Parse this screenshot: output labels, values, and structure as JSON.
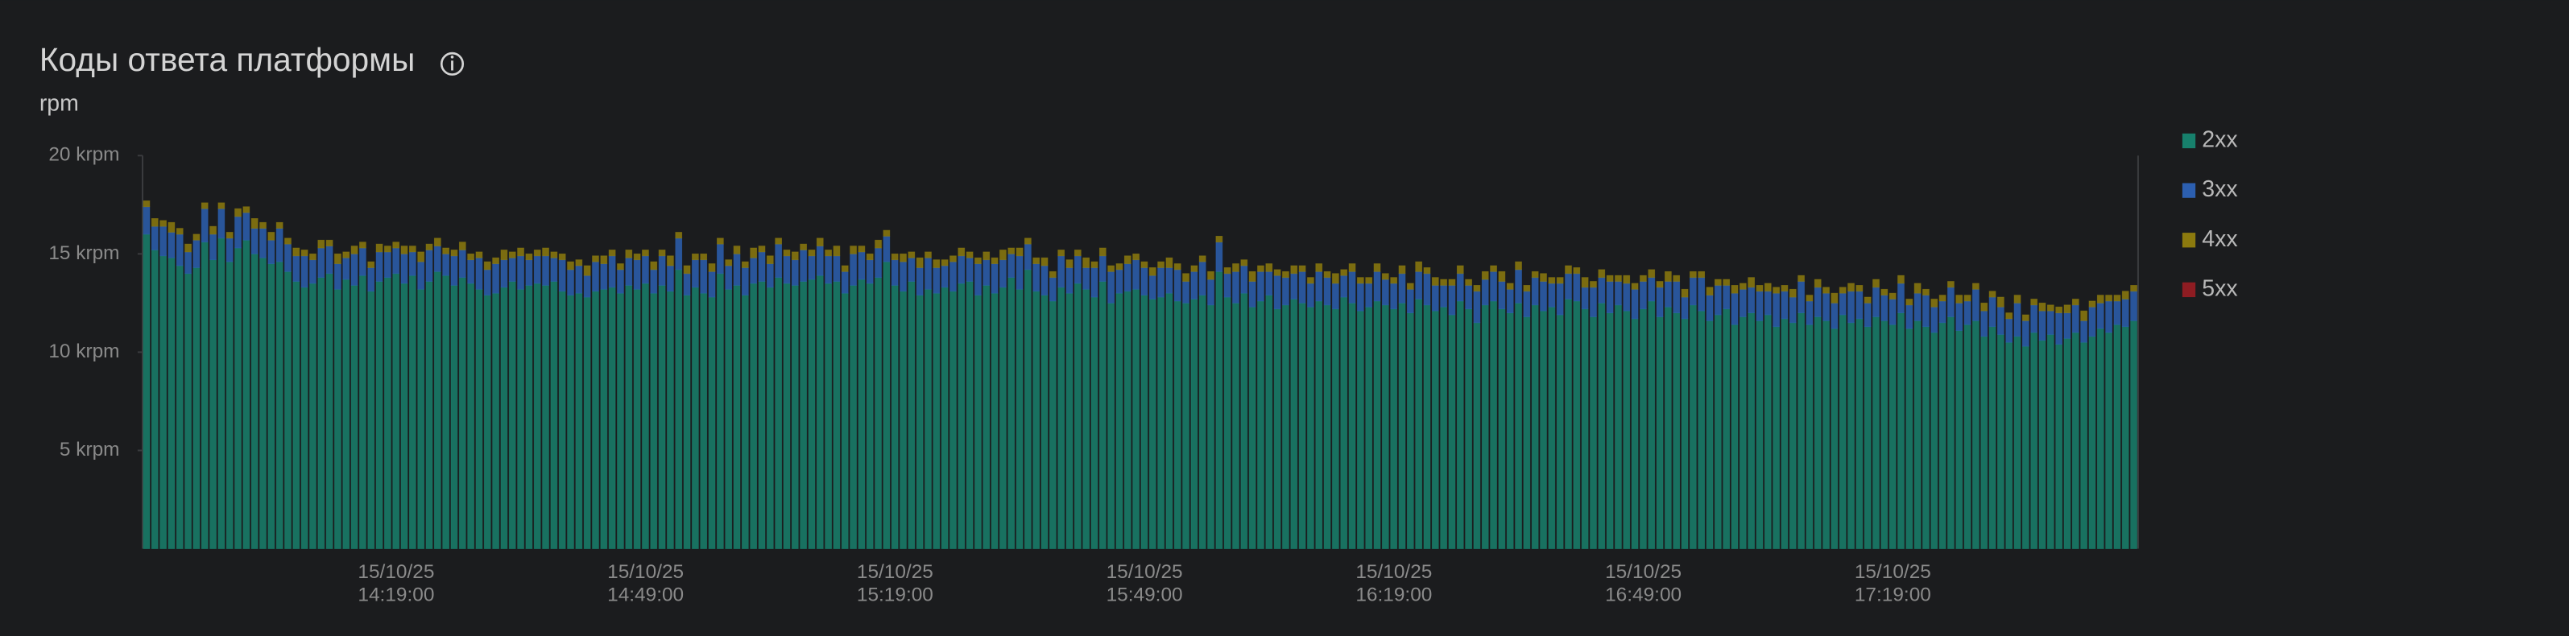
{
  "chart_data": {
    "type": "stacked-bar",
    "title": "Коды ответа платформы",
    "subtitle": "rpm",
    "categories": [
      null,
      null,
      null,
      null,
      null,
      null,
      null,
      null,
      null,
      null,
      null,
      null,
      null,
      null,
      null,
      null,
      null,
      null,
      null,
      null,
      null,
      null,
      null,
      null,
      null,
      null,
      null,
      null,
      null,
      null,
      "15/10/25\n14:19:00",
      null,
      null,
      null,
      null,
      null,
      null,
      null,
      null,
      null,
      null,
      null,
      null,
      null,
      null,
      null,
      null,
      null,
      null,
      null,
      null,
      null,
      null,
      null,
      null,
      null,
      null,
      null,
      null,
      null,
      "15/10/25\n14:49:00",
      null,
      null,
      null,
      null,
      null,
      null,
      null,
      null,
      null,
      null,
      null,
      null,
      null,
      null,
      null,
      null,
      null,
      null,
      null,
      null,
      null,
      null,
      null,
      null,
      null,
      null,
      null,
      null,
      null,
      "15/10/25\n15:19:00",
      null,
      null,
      null,
      null,
      null,
      null,
      null,
      null,
      null,
      null,
      null,
      null,
      null,
      null,
      null,
      null,
      null,
      null,
      null,
      null,
      null,
      null,
      null,
      null,
      null,
      null,
      null,
      null,
      null,
      "15/10/25\n15:49:00",
      null,
      null,
      null,
      null,
      null,
      null,
      null,
      null,
      null,
      null,
      null,
      null,
      null,
      null,
      null,
      null,
      null,
      null,
      null,
      null,
      null,
      null,
      null,
      null,
      null,
      null,
      null,
      null,
      null,
      "15/10/25\n16:19:00",
      null,
      null,
      null,
      null,
      null,
      null,
      null,
      null,
      null,
      null,
      null,
      null,
      null,
      null,
      null,
      null,
      null,
      null,
      null,
      null,
      null,
      null,
      null,
      null,
      null,
      null,
      null,
      null,
      null,
      "15/10/25\n16:49:00",
      null,
      null,
      null,
      null,
      null,
      null,
      null,
      null,
      null,
      null,
      null,
      null,
      null,
      null,
      null,
      null,
      null,
      null,
      null,
      null,
      null,
      null,
      null,
      null,
      null,
      null,
      null,
      null,
      null,
      "15/10/25\n17:19:00",
      null,
      null,
      null,
      null,
      null,
      null,
      null,
      null,
      null,
      null,
      null,
      null,
      null,
      null,
      null,
      null,
      null,
      null,
      null,
      null,
      null,
      null,
      null,
      null,
      null,
      null,
      null,
      null,
      null
    ],
    "series": [
      {
        "name": "2xx",
        "color": "#17806c",
        "values": [
          16.0,
          15.2,
          14.9,
          14.8,
          14.4,
          14.0,
          14.3,
          15.6,
          14.7,
          15.8,
          14.6,
          15.3,
          15.7,
          15.0,
          14.8,
          14.5,
          14.6,
          14.1,
          13.6,
          13.3,
          13.5,
          13.8,
          14.0,
          13.2,
          13.7,
          13.4,
          13.9,
          13.1,
          13.6,
          13.8,
          14.0,
          13.5,
          13.9,
          13.2,
          13.6,
          14.1,
          13.9,
          13.4,
          13.8,
          13.5,
          13.2,
          12.9,
          13.0,
          13.3,
          13.6,
          13.2,
          13.4,
          13.5,
          13.4,
          13.6,
          13.1,
          12.9,
          13.0,
          12.8,
          13.1,
          13.2,
          13.3,
          13.0,
          13.4,
          13.2,
          13.5,
          13.0,
          13.4,
          13.1,
          14.2,
          12.9,
          13.3,
          13.0,
          12.8,
          14.0,
          13.2,
          13.4,
          12.9,
          13.5,
          13.6,
          13.3,
          13.8,
          13.5,
          13.4,
          13.6,
          13.7,
          13.9,
          13.5,
          13.6,
          13.0,
          13.4,
          13.7,
          13.5,
          13.8,
          14.6,
          13.4,
          13.1,
          13.6,
          12.9,
          13.2,
          13.0,
          13.3,
          13.1,
          13.5,
          13.6,
          12.9,
          13.4,
          13.0,
          13.3,
          13.8,
          13.2,
          14.2,
          13.1,
          12.9,
          12.6,
          13.3,
          13.0,
          13.5,
          13.2,
          12.8,
          13.6,
          12.5,
          13.0,
          13.1,
          13.2,
          12.9,
          12.7,
          12.8,
          13.0,
          12.6,
          12.5,
          12.7,
          12.9,
          12.4,
          14.1,
          12.8,
          12.5,
          13.0,
          12.3,
          12.6,
          12.9,
          12.2,
          12.4,
          12.7,
          12.5,
          12.3,
          12.6,
          12.4,
          12.2,
          12.8,
          12.5,
          12.1,
          12.3,
          12.6,
          12.4,
          12.2,
          12.5,
          12.0,
          12.7,
          12.4,
          12.1,
          12.3,
          11.9,
          12.6,
          12.2,
          11.5,
          12.4,
          12.6,
          12.2,
          12.0,
          12.5,
          11.8,
          12.4,
          12.1,
          12.3,
          11.9,
          12.7,
          12.6,
          12.2,
          11.8,
          12.5,
          12.0,
          12.4,
          12.1,
          11.7,
          12.2,
          12.6,
          11.8,
          12.3,
          12.0,
          11.7,
          12.4,
          12.1,
          11.6,
          11.9,
          12.2,
          11.4,
          11.8,
          12.0,
          11.6,
          11.9,
          11.3,
          11.7,
          11.5,
          12.0,
          11.4,
          11.8,
          11.6,
          11.2,
          11.9,
          11.5,
          11.7,
          11.3,
          11.8,
          11.6,
          11.4,
          12.0,
          11.2,
          11.6,
          11.3,
          11.0,
          11.5,
          11.8,
          11.1,
          11.4,
          11.6,
          10.8,
          11.3,
          10.9,
          10.5,
          10.8,
          10.3,
          11.0,
          10.6,
          10.9,
          10.4,
          10.7,
          11.0,
          10.5,
          10.8,
          11.2,
          11.0,
          11.4,
          11.3,
          11.6
        ]
      },
      {
        "name": "3xx",
        "color": "#2c5fb0",
        "values": [
          1.4,
          1.2,
          1.5,
          1.3,
          1.6,
          1.1,
          1.4,
          1.7,
          1.3,
          1.5,
          1.2,
          1.6,
          1.4,
          1.3,
          1.5,
          1.2,
          1.7,
          1.4,
          1.3,
          1.6,
          1.2,
          1.5,
          1.4,
          1.3,
          1.1,
          1.6,
          1.4,
          1.2,
          1.5,
          1.3,
          1.3,
          1.5,
          1.2,
          1.4,
          1.6,
          1.3,
          1.1,
          1.5,
          1.4,
          1.2,
          1.6,
          1.3,
          1.5,
          1.4,
          1.2,
          1.7,
          1.3,
          1.4,
          1.5,
          1.2,
          1.6,
          1.3,
          1.4,
          1.1,
          1.5,
          1.3,
          1.6,
          1.2,
          1.4,
          1.5,
          1.4,
          1.2,
          1.5,
          1.3,
          1.6,
          1.1,
          1.4,
          1.7,
          1.3,
          1.5,
          1.2,
          1.6,
          1.4,
          1.3,
          1.5,
          1.2,
          1.7,
          1.4,
          1.3,
          1.6,
          1.2,
          1.5,
          1.4,
          1.3,
          1.1,
          1.6,
          1.4,
          1.2,
          1.5,
          1.3,
          1.3,
          1.5,
          1.2,
          1.4,
          1.6,
          1.3,
          1.1,
          1.5,
          1.4,
          1.2,
          1.6,
          1.3,
          1.5,
          1.4,
          1.2,
          1.7,
          1.3,
          1.4,
          1.5,
          1.2,
          1.6,
          1.3,
          1.4,
          1.1,
          1.5,
          1.3,
          1.6,
          1.2,
          1.4,
          1.5,
          1.4,
          1.2,
          1.5,
          1.3,
          1.6,
          1.1,
          1.4,
          1.7,
          1.3,
          1.5,
          1.2,
          1.6,
          1.4,
          1.3,
          1.5,
          1.2,
          1.7,
          1.4,
          1.3,
          1.6,
          1.2,
          1.5,
          1.4,
          1.3,
          1.1,
          1.6,
          1.4,
          1.2,
          1.5,
          1.3,
          1.3,
          1.5,
          1.2,
          1.4,
          1.6,
          1.3,
          1.1,
          1.5,
          1.4,
          1.2,
          1.6,
          1.3,
          1.5,
          1.4,
          1.2,
          1.7,
          1.3,
          1.4,
          1.5,
          1.2,
          1.6,
          1.3,
          1.4,
          1.1,
          1.5,
          1.3,
          1.6,
          1.2,
          1.4,
          1.5,
          1.4,
          1.2,
          1.5,
          1.3,
          1.6,
          1.1,
          1.4,
          1.7,
          1.3,
          1.5,
          1.2,
          1.6,
          1.4,
          1.3,
          1.5,
          1.2,
          1.7,
          1.4,
          1.3,
          1.6,
          1.2,
          1.5,
          1.4,
          1.3,
          1.1,
          1.6,
          1.4,
          1.2,
          1.5,
          1.3,
          1.3,
          1.5,
          1.2,
          1.4,
          1.6,
          1.3,
          1.1,
          1.5,
          1.4,
          1.2,
          1.6,
          1.3,
          1.5,
          1.4,
          1.2,
          1.7,
          1.3,
          1.4,
          1.5,
          1.2,
          1.6,
          1.3,
          1.4,
          1.1,
          1.5,
          1.3,
          1.6,
          1.2,
          1.4,
          1.5
        ]
      },
      {
        "name": "4xx",
        "color": "#8c7a0e",
        "values": [
          0.3,
          0.4,
          0.3,
          0.5,
          0.3,
          0.4,
          0.3,
          0.3,
          0.4,
          0.3,
          0.3,
          0.4,
          0.3,
          0.5,
          0.3,
          0.4,
          0.3,
          0.3,
          0.4,
          0.3,
          0.3,
          0.4,
          0.3,
          0.5,
          0.3,
          0.4,
          0.3,
          0.3,
          0.4,
          0.3,
          0.3,
          0.4,
          0.3,
          0.5,
          0.3,
          0.4,
          0.3,
          0.3,
          0.4,
          0.3,
          0.3,
          0.4,
          0.3,
          0.5,
          0.3,
          0.4,
          0.3,
          0.3,
          0.4,
          0.3,
          0.3,
          0.4,
          0.3,
          0.5,
          0.3,
          0.4,
          0.3,
          0.3,
          0.4,
          0.3,
          0.3,
          0.4,
          0.3,
          0.5,
          0.3,
          0.4,
          0.3,
          0.3,
          0.4,
          0.3,
          0.3,
          0.4,
          0.3,
          0.5,
          0.3,
          0.4,
          0.3,
          0.3,
          0.4,
          0.3,
          0.3,
          0.4,
          0.3,
          0.5,
          0.3,
          0.4,
          0.3,
          0.3,
          0.4,
          0.3,
          0.3,
          0.4,
          0.3,
          0.5,
          0.3,
          0.4,
          0.3,
          0.3,
          0.4,
          0.3,
          0.3,
          0.4,
          0.3,
          0.5,
          0.3,
          0.4,
          0.3,
          0.3,
          0.4,
          0.3,
          0.3,
          0.4,
          0.3,
          0.5,
          0.3,
          0.4,
          0.3,
          0.3,
          0.4,
          0.3,
          0.3,
          0.4,
          0.3,
          0.5,
          0.3,
          0.4,
          0.3,
          0.3,
          0.4,
          0.3,
          0.3,
          0.4,
          0.3,
          0.5,
          0.3,
          0.4,
          0.3,
          0.3,
          0.4,
          0.3,
          0.3,
          0.4,
          0.3,
          0.5,
          0.3,
          0.4,
          0.3,
          0.3,
          0.4,
          0.3,
          0.3,
          0.4,
          0.3,
          0.5,
          0.3,
          0.4,
          0.3,
          0.3,
          0.4,
          0.3,
          0.3,
          0.4,
          0.3,
          0.5,
          0.3,
          0.4,
          0.3,
          0.3,
          0.4,
          0.3,
          0.3,
          0.4,
          0.3,
          0.5,
          0.3,
          0.4,
          0.3,
          0.3,
          0.4,
          0.3,
          0.3,
          0.4,
          0.3,
          0.5,
          0.3,
          0.4,
          0.3,
          0.3,
          0.4,
          0.3,
          0.3,
          0.4,
          0.3,
          0.5,
          0.3,
          0.4,
          0.3,
          0.3,
          0.4,
          0.3,
          0.3,
          0.4,
          0.3,
          0.5,
          0.3,
          0.4,
          0.3,
          0.3,
          0.4,
          0.3,
          0.3,
          0.4,
          0.3,
          0.5,
          0.3,
          0.4,
          0.3,
          0.3,
          0.4,
          0.3,
          0.3,
          0.4,
          0.3,
          0.5,
          0.3,
          0.4,
          0.3,
          0.3,
          0.4,
          0.3,
          0.3,
          0.4,
          0.3,
          0.5,
          0.3,
          0.4,
          0.3,
          0.3,
          0.4,
          0.3
        ]
      },
      {
        "name": "5xx",
        "color": "#8e1c22",
        "values": [
          0,
          0,
          0,
          0,
          0,
          0,
          0,
          0,
          0,
          0,
          0,
          0,
          0,
          0,
          0,
          0,
          0,
          0,
          0,
          0,
          0,
          0,
          0,
          0,
          0,
          0,
          0,
          0,
          0,
          0,
          0,
          0,
          0,
          0,
          0,
          0,
          0,
          0,
          0,
          0,
          0,
          0,
          0,
          0,
          0,
          0,
          0,
          0,
          0,
          0,
          0,
          0,
          0,
          0,
          0,
          0,
          0,
          0,
          0,
          0,
          0,
          0,
          0,
          0,
          0,
          0,
          0,
          0,
          0,
          0,
          0,
          0,
          0,
          0,
          0,
          0,
          0,
          0,
          0,
          0,
          0,
          0,
          0,
          0,
          0,
          0,
          0,
          0,
          0,
          0,
          0,
          0,
          0,
          0,
          0,
          0,
          0,
          0,
          0,
          0,
          0,
          0,
          0,
          0,
          0,
          0,
          0,
          0,
          0,
          0,
          0,
          0,
          0,
          0,
          0,
          0,
          0,
          0,
          0,
          0,
          0,
          0,
          0,
          0,
          0,
          0,
          0,
          0,
          0,
          0,
          0,
          0,
          0,
          0,
          0,
          0,
          0,
          0,
          0,
          0,
          0,
          0,
          0,
          0,
          0,
          0,
          0,
          0,
          0,
          0,
          0,
          0,
          0,
          0,
          0,
          0,
          0,
          0,
          0,
          0,
          0,
          0,
          0,
          0,
          0,
          0,
          0,
          0,
          0,
          0,
          0,
          0,
          0,
          0,
          0,
          0,
          0,
          0,
          0,
          0,
          0,
          0,
          0,
          0,
          0,
          0,
          0,
          0,
          0,
          0,
          0,
          0,
          0,
          0,
          0,
          0,
          0,
          0,
          0,
          0,
          0,
          0,
          0,
          0,
          0,
          0,
          0,
          0,
          0,
          0,
          0,
          0,
          0,
          0,
          0,
          0,
          0,
          0,
          0,
          0,
          0,
          0,
          0,
          0,
          0,
          0,
          0,
          0,
          0,
          0,
          0,
          0,
          0,
          0,
          0,
          0,
          0,
          0,
          0,
          0
        ]
      }
    ],
    "ylim": [
      0,
      20
    ],
    "yticks": [
      {
        "value": 5,
        "label": "5 krpm"
      },
      {
        "value": 10,
        "label": "10 krpm"
      },
      {
        "value": 15,
        "label": "15 krpm"
      },
      {
        "value": 20,
        "label": "20 krpm"
      }
    ],
    "legend": "right"
  }
}
